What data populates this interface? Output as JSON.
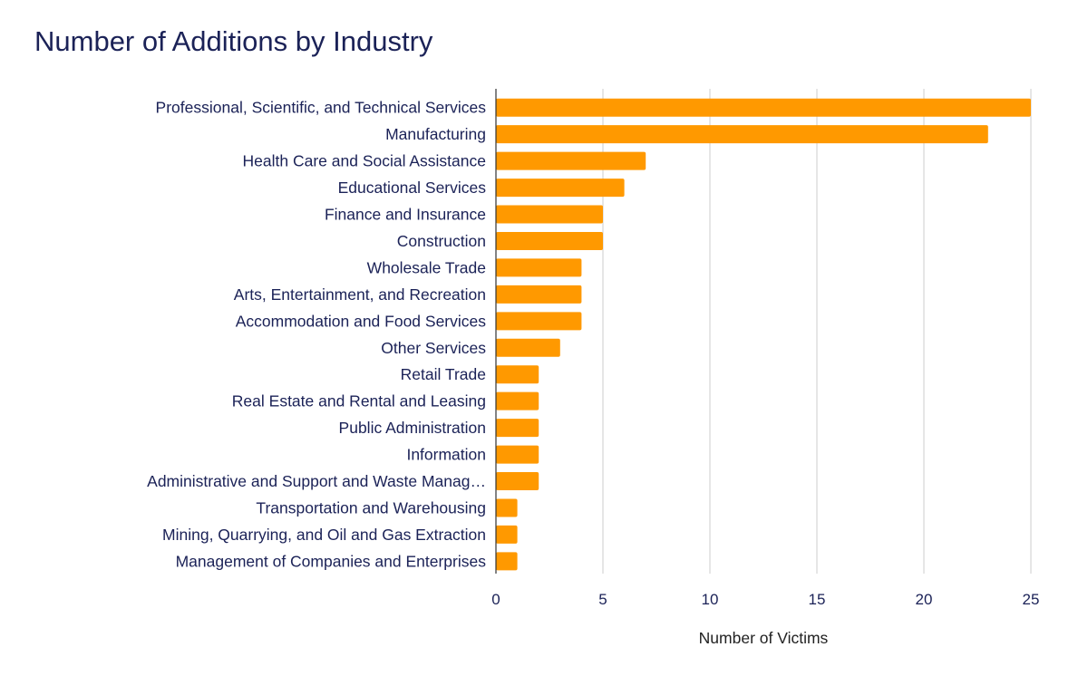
{
  "chart_data": {
    "type": "bar",
    "orientation": "horizontal",
    "title": "Number of Additions by Industry",
    "xlabel": "Number of Victims",
    "ylabel": "",
    "xlim": [
      0,
      25
    ],
    "x_ticks": [
      0,
      5,
      10,
      15,
      20,
      25
    ],
    "grid": true,
    "legend": "none",
    "categories": [
      "Professional, Scientific, and Technical Services",
      "Manufacturing",
      "Health Care and Social Assistance",
      "Educational Services",
      "Finance and Insurance",
      "Construction",
      "Wholesale Trade",
      "Arts, Entertainment, and Recreation",
      "Accommodation and Food Services",
      "Other Services",
      "Retail Trade",
      "Real Estate and Rental and Leasing",
      "Public Administration",
      "Information",
      "Administrative and Support and Waste Manag…",
      "Transportation and Warehousing",
      "Mining, Quarrying, and Oil and Gas Extraction",
      "Management of Companies and Enterprises"
    ],
    "values": [
      25,
      23,
      7,
      6,
      5,
      5,
      4,
      4,
      4,
      3,
      2,
      2,
      2,
      2,
      2,
      1,
      1,
      1
    ],
    "colors": {
      "bar": "#ff9900",
      "title": "#1b2257",
      "label": "#1b2257",
      "grid": "#cccccc",
      "axis": "#333333"
    }
  }
}
